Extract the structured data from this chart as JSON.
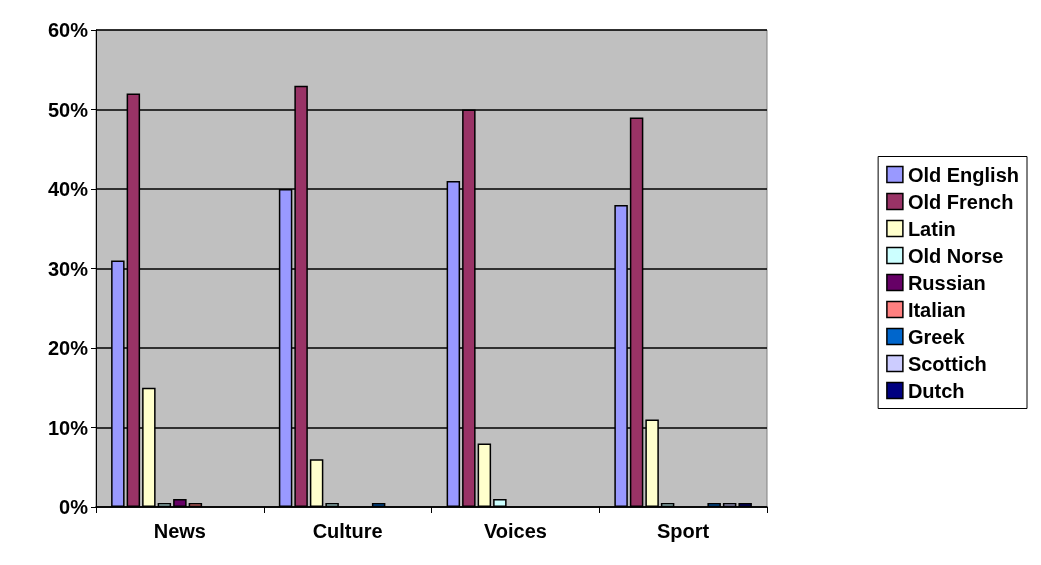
{
  "chart_data": {
    "type": "bar",
    "categories": [
      "News",
      "Culture",
      "Voices",
      "Sport"
    ],
    "series": [
      {
        "name": "Old English",
        "color": "#9999ff",
        "values": [
          31,
          40,
          41,
          38
        ]
      },
      {
        "name": "Old French",
        "color": "#993366",
        "values": [
          52,
          53,
          50,
          49
        ]
      },
      {
        "name": "Latin",
        "color": "#ffffcc",
        "values": [
          15,
          6,
          8,
          11
        ]
      },
      {
        "name": "Old Norse",
        "color": "#ccffff",
        "values": [
          0.5,
          0.5,
          1,
          0.5
        ]
      },
      {
        "name": "Russian",
        "color": "#660066",
        "values": [
          1,
          0,
          0,
          0
        ]
      },
      {
        "name": "Italian",
        "color": "#ff8080",
        "values": [
          0.5,
          0,
          0,
          0
        ]
      },
      {
        "name": "Greek",
        "color": "#0066cc",
        "values": [
          0,
          0.5,
          0,
          0.5
        ]
      },
      {
        "name": "Scottich",
        "color": "#ccccff",
        "values": [
          0,
          0,
          0,
          0.5
        ]
      },
      {
        "name": "Dutch",
        "color": "#000080",
        "values": [
          0,
          0,
          0,
          0.5
        ]
      }
    ],
    "ylim": [
      0,
      60
    ],
    "yticks": [
      {
        "value": 0,
        "label": "0%"
      },
      {
        "value": 10,
        "label": "10%"
      },
      {
        "value": 20,
        "label": "20%"
      },
      {
        "value": 30,
        "label": "30%"
      },
      {
        "value": 40,
        "label": "40%"
      },
      {
        "value": 50,
        "label": "50%"
      },
      {
        "value": 60,
        "label": "60%"
      }
    ],
    "grid": "y",
    "legend": "right"
  }
}
